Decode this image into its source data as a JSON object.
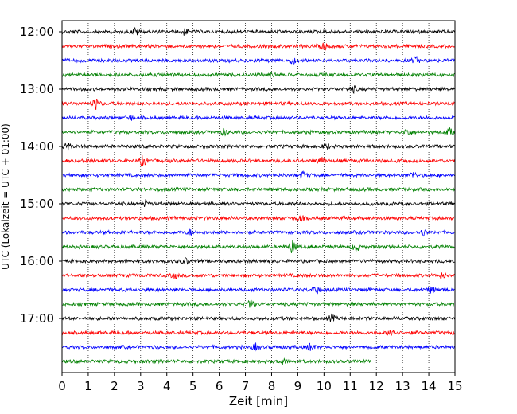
{
  "chart_data": {
    "type": "line",
    "subtype": "seismogram-helicorder",
    "title": "",
    "xlabel": "Zeit  [min]",
    "ylabel": "UTC (Lokalzeit = UTC + 01:00)",
    "xlim": [
      0,
      15
    ],
    "x_ticks": [
      "0",
      "1",
      "2",
      "3",
      "4",
      "5",
      "6",
      "7",
      "8",
      "9",
      "10",
      "11",
      "12",
      "13",
      "14",
      "15"
    ],
    "y_tick_labels": [
      "12:00",
      "13:00",
      "14:00",
      "15:00",
      "16:00",
      "17:00"
    ],
    "rows_per_label": 4,
    "row_minutes": 15,
    "grid": "vertical-dotted",
    "colors": [
      "#000000",
      "#ff0000",
      "#0000ff",
      "#008000"
    ],
    "trace_start_times": [
      "12:00",
      "12:15",
      "12:30",
      "12:45",
      "13:00",
      "13:15",
      "13:30",
      "13:45",
      "14:00",
      "14:15",
      "14:30",
      "14:45",
      "15:00",
      "15:15",
      "15:30",
      "15:45",
      "16:00",
      "16:15",
      "16:30",
      "16:45",
      "17:00",
      "17:15",
      "17:30",
      "17:45"
    ],
    "last_trace_end_min": 11.8,
    "bursts": [
      {
        "row": 0,
        "x": 2.8,
        "amp": 2.0
      },
      {
        "row": 0,
        "x": 4.7,
        "amp": 1.5
      },
      {
        "row": 1,
        "x": 10.0,
        "amp": 1.8
      },
      {
        "row": 2,
        "x": 8.8,
        "amp": 1.8
      },
      {
        "row": 2,
        "x": 13.5,
        "amp": 1.6
      },
      {
        "row": 3,
        "x": 8.0,
        "amp": 1.3
      },
      {
        "row": 4,
        "x": 11.1,
        "amp": 1.5
      },
      {
        "row": 5,
        "x": 1.3,
        "amp": 3.0
      },
      {
        "row": 6,
        "x": 2.6,
        "amp": 1.3
      },
      {
        "row": 7,
        "x": 6.2,
        "amp": 1.5
      },
      {
        "row": 7,
        "x": 13.2,
        "amp": 2.2
      },
      {
        "row": 7,
        "x": 14.8,
        "amp": 1.8
      },
      {
        "row": 8,
        "x": 0.2,
        "amp": 1.8
      },
      {
        "row": 8,
        "x": 10.1,
        "amp": 1.5
      },
      {
        "row": 9,
        "x": 3.1,
        "amp": 2.5
      },
      {
        "row": 9,
        "x": 9.9,
        "amp": 2.0
      },
      {
        "row": 10,
        "x": 9.2,
        "amp": 1.8
      },
      {
        "row": 10,
        "x": 13.4,
        "amp": 1.5
      },
      {
        "row": 12,
        "x": 3.2,
        "amp": 1.5
      },
      {
        "row": 13,
        "x": 9.1,
        "amp": 1.5
      },
      {
        "row": 14,
        "x": 4.9,
        "amp": 1.3
      },
      {
        "row": 14,
        "x": 13.8,
        "amp": 1.5
      },
      {
        "row": 15,
        "x": 8.8,
        "amp": 3.5
      },
      {
        "row": 15,
        "x": 11.2,
        "amp": 2.8
      },
      {
        "row": 16,
        "x": 4.7,
        "amp": 1.5
      },
      {
        "row": 17,
        "x": 4.3,
        "amp": 1.5
      },
      {
        "row": 17,
        "x": 14.5,
        "amp": 1.3
      },
      {
        "row": 18,
        "x": 9.7,
        "amp": 2.0
      },
      {
        "row": 18,
        "x": 14.1,
        "amp": 1.8
      },
      {
        "row": 19,
        "x": 7.2,
        "amp": 1.8
      },
      {
        "row": 20,
        "x": 10.3,
        "amp": 1.5
      },
      {
        "row": 21,
        "x": 12.6,
        "amp": 3.0
      },
      {
        "row": 22,
        "x": 7.4,
        "amp": 1.8
      },
      {
        "row": 22,
        "x": 9.5,
        "amp": 2.2
      },
      {
        "row": 23,
        "x": 8.4,
        "amp": 1.5
      }
    ]
  }
}
